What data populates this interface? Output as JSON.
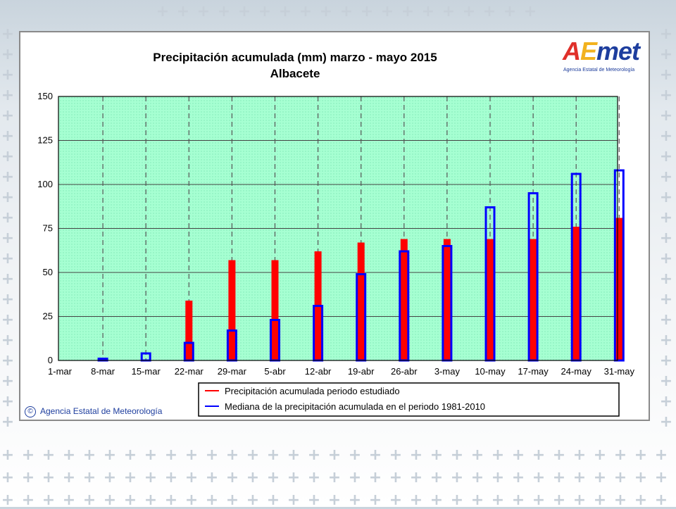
{
  "logo": {
    "word": "AEmet",
    "subtitle": "Agencia Estatal de Meteorología",
    "colors": {
      "a": "#e0302a",
      "e": "#f2b21e",
      "met": "#1e3e9e"
    }
  },
  "copyright": {
    "icon": "copyright-icon",
    "text": "Agencia Estatal de Meteorología"
  },
  "chart_data": {
    "type": "bar",
    "title": "Precipitación acumulada (mm) marzo - mayo 2015",
    "subtitle": "Albacete",
    "xlabel": "",
    "ylabel": "",
    "categories": [
      "1-mar",
      "8-mar",
      "15-mar",
      "22-mar",
      "29-mar",
      "5-abr",
      "12-abr",
      "19-abr",
      "26-abr",
      "3-may",
      "10-may",
      "17-may",
      "24-may",
      "31-may"
    ],
    "ylim": [
      0,
      150
    ],
    "yticks": [
      "0",
      "25",
      "50",
      "75",
      "100",
      "125",
      "150"
    ],
    "grid": true,
    "legend_position": "bottom",
    "series": [
      {
        "name": "Precipitación acumulada periodo estudiado",
        "color": "#ff0000",
        "values": [
          0,
          0,
          0,
          34,
          57,
          57,
          62,
          67,
          69,
          69,
          69,
          69,
          76,
          81
        ]
      },
      {
        "name": "Mediana de la precipitación acumulada en el periodo 1981-2010",
        "color": "#0000ff",
        "values": [
          0,
          1,
          4,
          10,
          17,
          23,
          31,
          49,
          62,
          65,
          87,
          95,
          106,
          108
        ]
      }
    ]
  }
}
